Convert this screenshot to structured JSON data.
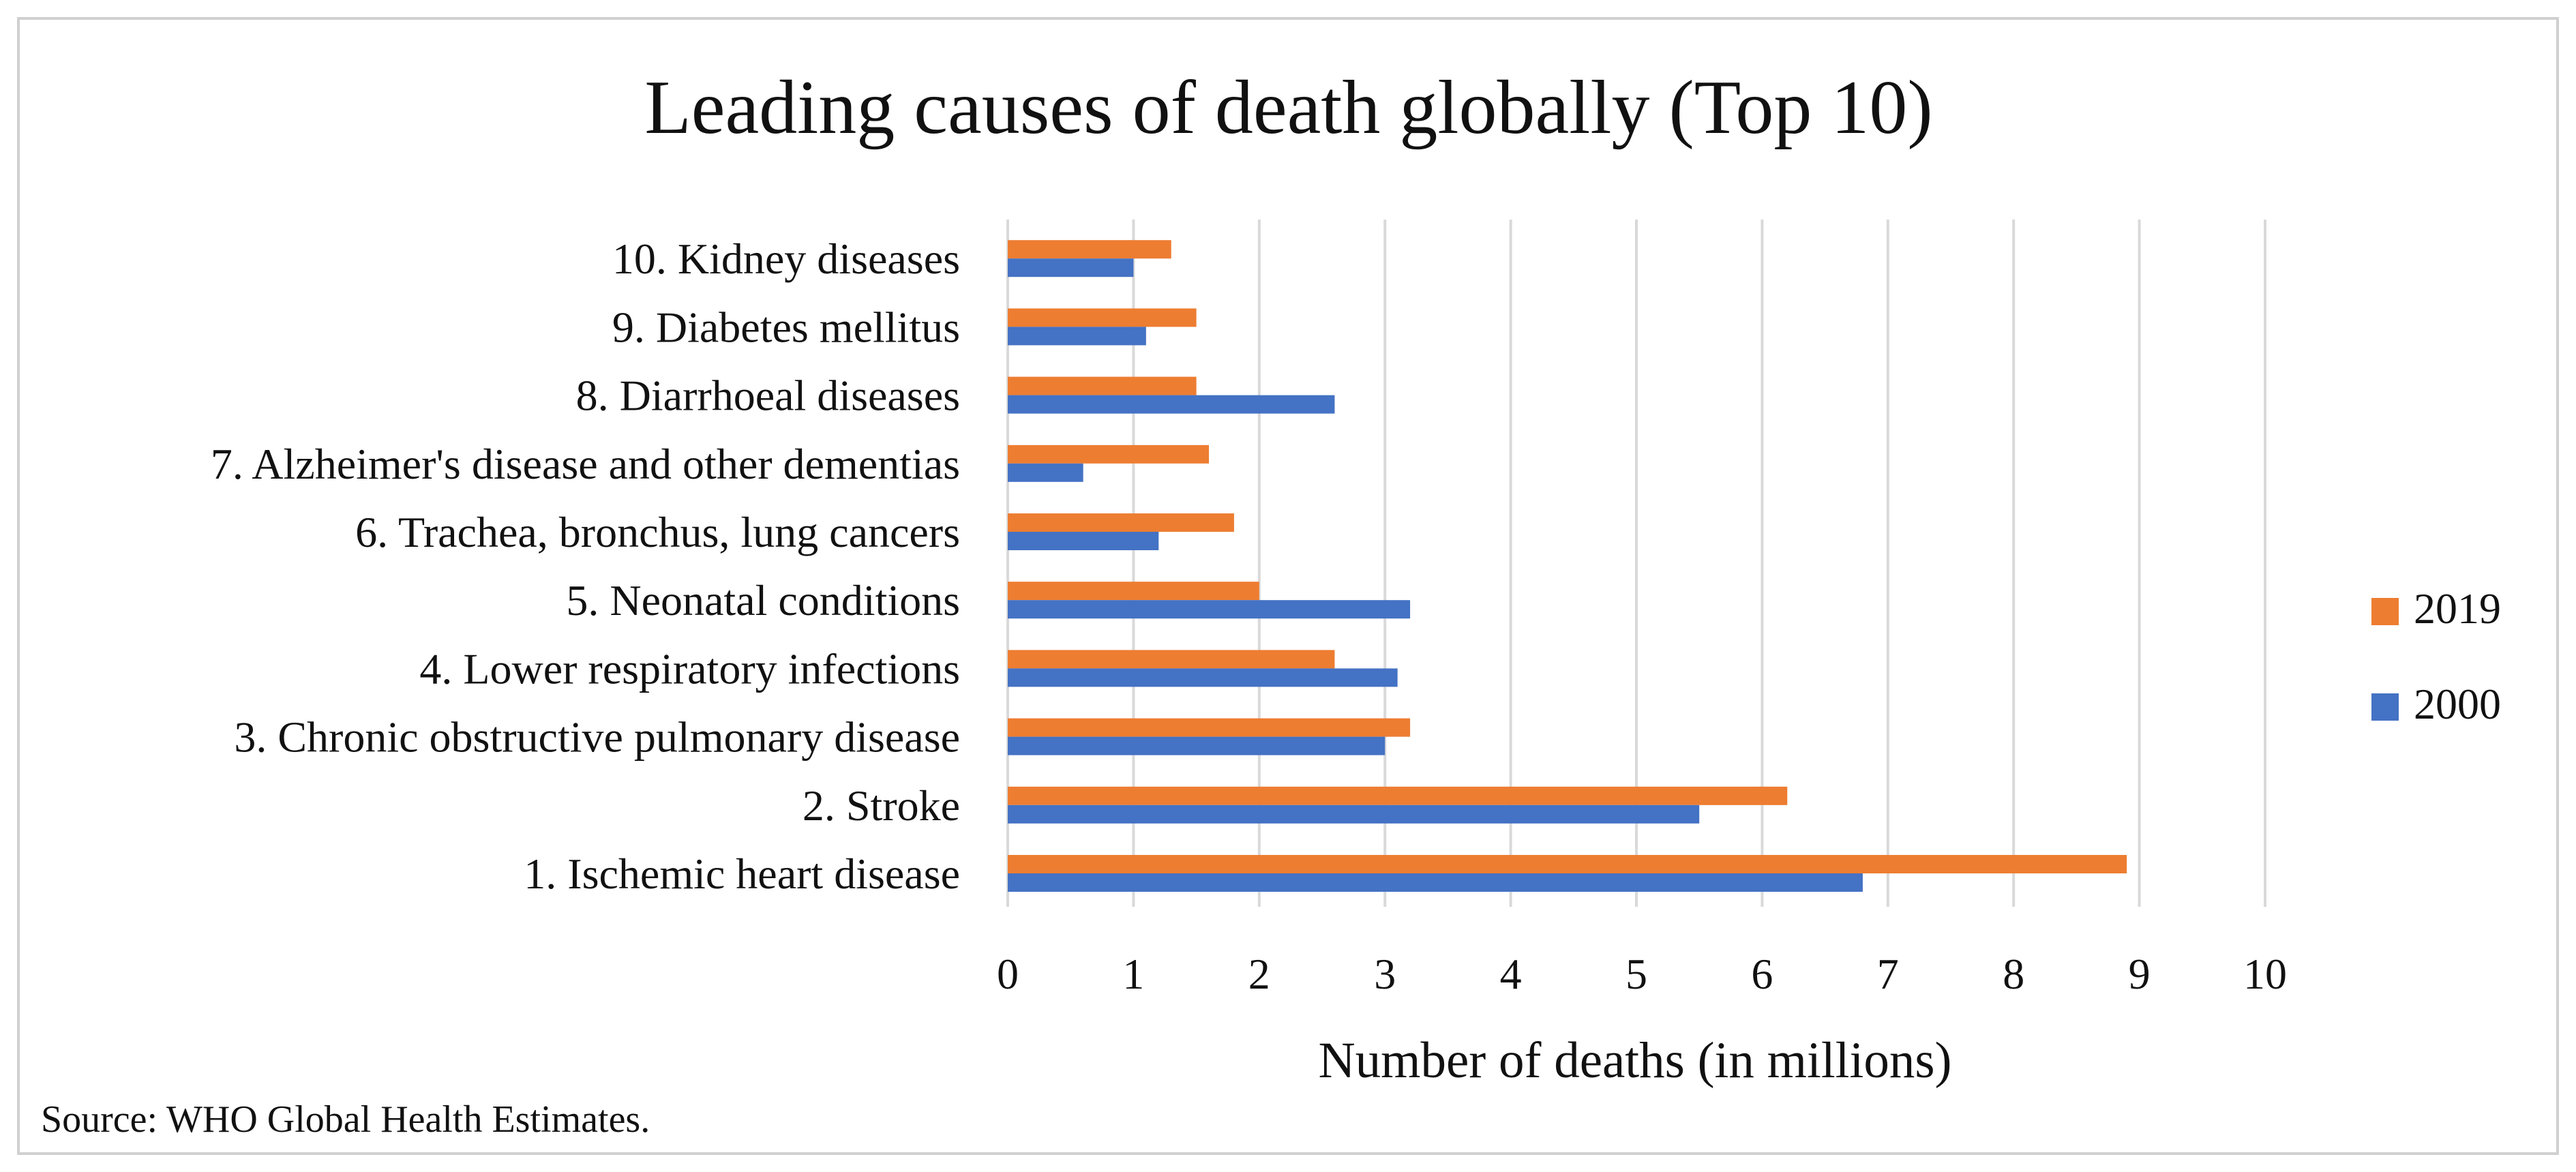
{
  "chart_data": {
    "type": "bar",
    "orientation": "horizontal",
    "title": "Leading causes of death globally (Top 10)",
    "xlabel": "Number of deaths (in millions)",
    "ylabel": "",
    "xlim": [
      0,
      10
    ],
    "xticks": [
      0,
      1,
      2,
      3,
      4,
      5,
      6,
      7,
      8,
      9,
      10
    ],
    "grid": true,
    "legend_position": "right",
    "categories": [
      "1. Ischemic heart disease",
      "2. Stroke",
      "3. Chronic obstructive pulmonary disease",
      "4. Lower respiratory infections",
      "5. Neonatal conditions",
      "6. Trachea, bronchus, lung cancers",
      "7. Alzheimer's disease and other dementias",
      "8. Diarrhoeal diseases",
      "9. Diabetes mellitus",
      "10. Kidney diseases"
    ],
    "series": [
      {
        "name": "2019",
        "color": "#ED7D31",
        "values": [
          8.9,
          6.2,
          3.2,
          2.6,
          2.0,
          1.8,
          1.6,
          1.5,
          1.5,
          1.3
        ]
      },
      {
        "name": "2000",
        "color": "#4472C4",
        "values": [
          6.8,
          5.5,
          3.0,
          3.1,
          3.2,
          1.2,
          0.6,
          2.6,
          1.1,
          1.0
        ]
      }
    ],
    "source": "Source: WHO Global Health Estimates."
  }
}
